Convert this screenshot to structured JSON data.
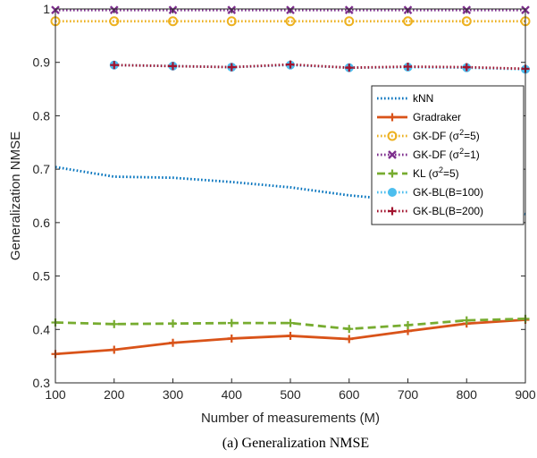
{
  "chart_data": {
    "type": "line",
    "title": "",
    "caption": "(a) Generalization NMSE",
    "xlabel": "Number of measurements (M)",
    "ylabel": "Generalization NMSE",
    "xlim": [
      100,
      900
    ],
    "ylim": [
      0.3,
      1.0
    ],
    "xticks": [
      "100",
      "200",
      "300",
      "400",
      "500",
      "600",
      "700",
      "800",
      "900"
    ],
    "yticks": [
      "0.3",
      "0.4",
      "0.5",
      "0.6",
      "0.7",
      "0.8",
      "0.9",
      "1"
    ],
    "grid": false,
    "legend_position": "right",
    "series": [
      {
        "name": "kNN",
        "color": "#0072BD",
        "dash": "dotted",
        "marker": "none",
        "x": [
          100,
          200,
          300,
          400,
          500,
          600,
          700,
          800,
          900
        ],
        "y": [
          0.704,
          0.686,
          0.684,
          0.676,
          0.666,
          0.651,
          0.641,
          0.631,
          0.616
        ]
      },
      {
        "name": "Gradraker",
        "color": "#D95319",
        "dash": "solid",
        "marker": "plus",
        "x": [
          100,
          200,
          300,
          400,
          500,
          600,
          700,
          800,
          900
        ],
        "y": [
          0.354,
          0.362,
          0.375,
          0.383,
          0.388,
          0.382,
          0.397,
          0.411,
          0.418
        ]
      },
      {
        "name": "GK-DF (σ2=5)",
        "legend_main": "GK-DF (",
        "legend_sup": "2",
        "legend_tail": "=5)",
        "color": "#EDB120",
        "dash": "dotted",
        "marker": "circle",
        "x": [
          100,
          200,
          300,
          400,
          500,
          600,
          700,
          800,
          900
        ],
        "y": [
          0.977,
          0.977,
          0.977,
          0.977,
          0.977,
          0.977,
          0.977,
          0.977,
          0.977
        ]
      },
      {
        "name": "GK-DF (σ2=1)",
        "legend_main": "GK-DF (",
        "legend_sup": "2",
        "legend_tail": "=1)",
        "color": "#7E2F8E",
        "dash": "dotted",
        "marker": "x",
        "x": [
          100,
          200,
          300,
          400,
          500,
          600,
          700,
          800,
          900
        ],
        "y": [
          0.998,
          0.998,
          0.998,
          0.998,
          0.998,
          0.998,
          0.998,
          0.998,
          0.998
        ]
      },
      {
        "name": "KL (σ2=5)",
        "legend_main": "KL (",
        "legend_sup": "2",
        "legend_tail": "=5)",
        "color": "#77AC30",
        "dash": "dashed",
        "marker": "plus",
        "x": [
          100,
          200,
          300,
          400,
          500,
          600,
          700,
          800,
          900
        ],
        "y": [
          0.413,
          0.41,
          0.411,
          0.412,
          0.412,
          0.401,
          0.408,
          0.417,
          0.42
        ]
      },
      {
        "name": "GK-BL(B=100)",
        "color": "#4DBEEE",
        "dash": "dotted",
        "marker": "dot",
        "x": [
          200,
          300,
          400,
          500,
          600,
          700,
          800,
          900
        ],
        "y": [
          0.895,
          0.893,
          0.891,
          0.895,
          0.89,
          0.891,
          0.89,
          0.887
        ]
      },
      {
        "name": "GK-BL(B=200)",
        "color": "#A2142F",
        "dash": "dotted",
        "marker": "plus",
        "x": [
          200,
          300,
          400,
          500,
          600,
          700,
          800,
          900
        ],
        "y": [
          0.895,
          0.893,
          0.891,
          0.896,
          0.89,
          0.892,
          0.891,
          0.888
        ]
      }
    ]
  }
}
